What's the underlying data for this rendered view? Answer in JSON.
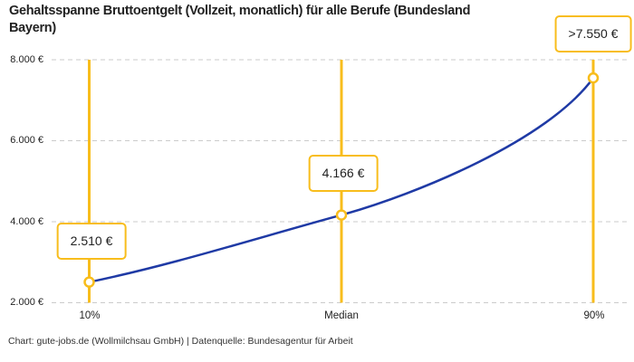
{
  "header": {
    "title": "Gehaltsspanne Bruttoentgelt (Vollzeit, monatlich) für alle Berufe (Bundesland\nBayern)"
  },
  "footer": {
    "attribution": "Chart: gute-jobs.de (Wollmilchsau GmbH) | Datenquelle: Bundesagentur für Arbeit"
  },
  "colors": {
    "accent_yellow": "#F8BD1C",
    "line_blue": "#1F3AA5",
    "grid_gray": "#CBCBCB",
    "marker_fill": "#FFFFFF"
  },
  "chart_data": {
    "type": "line",
    "title": "Gehaltsspanne Bruttoentgelt (Vollzeit, monatlich) für alle Berufe (Bundesland Bayern)",
    "xlabel": "",
    "ylabel": "",
    "ylim": [
      2000,
      8000
    ],
    "grid": "dashed-horizontal",
    "legend": "none",
    "categories": [
      "10%",
      "Median",
      "90%"
    ],
    "points": [
      {
        "category": "10%",
        "value": 2510,
        "label": "2.510 €"
      },
      {
        "category": "Median",
        "value": 4166,
        "label": "4.166 €"
      },
      {
        "category": "90%",
        "value": 7550,
        "label": ">7.550 €"
      }
    ],
    "y_ticks": [
      {
        "value": 8000,
        "label": "8.000 €"
      },
      {
        "value": 6000,
        "label": "6.000 €"
      },
      {
        "value": 4000,
        "label": "4.000 €"
      },
      {
        "value": 2000,
        "label": "2.000 €"
      }
    ]
  }
}
